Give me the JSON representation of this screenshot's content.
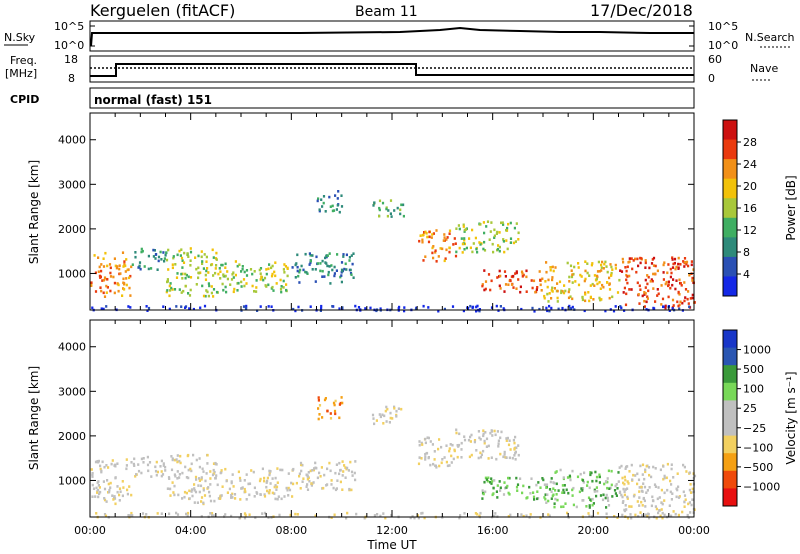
{
  "header": {
    "station": "Kerguelen (fitACF)",
    "beam": "Beam 11",
    "date": "17/Dec/2018"
  },
  "top_panels": {
    "nsky_label": "N.Sky",
    "nsearch_label": "N.Search",
    "nsky_ticks": [
      "10^5",
      "10^0"
    ],
    "nsearch_ticks": [
      "10^5",
      "10^0"
    ],
    "freq_label_1": "Freq.",
    "freq_label_2": "[MHz]",
    "freq_ticks": [
      "18",
      "8"
    ],
    "nave_label": "Nave",
    "nave_ticks": [
      "60",
      "0"
    ],
    "cpid_label": "CPID",
    "cpid_value": "normal (fast) 151"
  },
  "colors": {
    "power": [
      "#1428e6",
      "#2a50b4",
      "#2e8a7a",
      "#3fae62",
      "#a8c83a",
      "#f2c20a",
      "#f29018",
      "#ea3a0e",
      "#cc1010"
    ],
    "velocity": [
      "#e81010",
      "#f04a0a",
      "#f5a013",
      "#f2d060",
      "#c0c0c0",
      "#c0c0c0",
      "#78d858",
      "#3a9a3a",
      "#2a56b2",
      "#1836c8"
    ]
  },
  "chart_data": [
    {
      "type": "heatmap",
      "name": "power",
      "ylabel": "Slant Range [km]",
      "xlabel": "",
      "y_ticks": [
        "4000",
        "3000",
        "2000",
        "1000"
      ],
      "ylim": [
        180,
        4600
      ],
      "xlim": [
        0,
        24
      ],
      "colorbar_label": "Power [dB]",
      "colorbar_ticks": [
        "28",
        "24",
        "20",
        "16",
        "12",
        "8",
        "4"
      ],
      "regions": [
        {
          "t0": 0.0,
          "t1": 1.6,
          "r0": 500,
          "r1": 1500,
          "level": 6
        },
        {
          "t0": 1.6,
          "t1": 3.0,
          "r0": 1100,
          "r1": 1600,
          "level": 2
        },
        {
          "t0": 3.0,
          "t1": 5.0,
          "r0": 500,
          "r1": 1600,
          "level": 4
        },
        {
          "t0": 5.0,
          "t1": 8.0,
          "r0": 600,
          "r1": 1300,
          "level": 4
        },
        {
          "t0": 8.0,
          "t1": 10.5,
          "r0": 800,
          "r1": 1500,
          "level": 2
        },
        {
          "t0": 9.0,
          "t1": 10.0,
          "r0": 2400,
          "r1": 2900,
          "level": 2
        },
        {
          "t0": 11.2,
          "t1": 12.5,
          "r0": 2300,
          "r1": 2700,
          "level": 3
        },
        {
          "t0": 13.0,
          "t1": 14.5,
          "r0": 1300,
          "r1": 2000,
          "level": 6
        },
        {
          "t0": 14.5,
          "t1": 17.0,
          "r0": 1500,
          "r1": 2200,
          "level": 4
        },
        {
          "t0": 15.5,
          "t1": 18.0,
          "r0": 600,
          "r1": 1100,
          "level": 7
        },
        {
          "t0": 18.0,
          "t1": 21.0,
          "r0": 400,
          "r1": 1300,
          "level": 5
        },
        {
          "t0": 21.0,
          "t1": 24.0,
          "r0": 250,
          "r1": 1400,
          "level": 7
        },
        {
          "t0": 0.0,
          "t1": 24.0,
          "r0": 180,
          "r1": 300,
          "level": 0
        }
      ]
    },
    {
      "type": "heatmap",
      "name": "velocity",
      "ylabel": "Slant Range [km]",
      "xlabel": "Time UT",
      "y_ticks": [
        "4000",
        "3000",
        "2000",
        "1000"
      ],
      "x_ticks": [
        "00:00",
        "04:00",
        "08:00",
        "12:00",
        "16:00",
        "20:00",
        "00:00"
      ],
      "ylim": [
        180,
        4600
      ],
      "xlim": [
        0,
        24
      ],
      "colorbar_label": "Velocity [m s⁻¹]",
      "colorbar_ticks": [
        "1000",
        "500",
        "100",
        "25",
        "−25",
        "−100",
        "−500",
        "−1000"
      ],
      "regions": [
        {
          "t0": 0.0,
          "t1": 1.6,
          "r0": 500,
          "r1": 1500,
          "level": 4
        },
        {
          "t0": 1.6,
          "t1": 3.0,
          "r0": 1100,
          "r1": 1600,
          "level": 4
        },
        {
          "t0": 3.0,
          "t1": 5.0,
          "r0": 500,
          "r1": 1600,
          "level": 4
        },
        {
          "t0": 5.0,
          "t1": 8.0,
          "r0": 600,
          "r1": 1300,
          "level": 4
        },
        {
          "t0": 8.0,
          "t1": 10.5,
          "r0": 800,
          "r1": 1500,
          "level": 4
        },
        {
          "t0": 9.0,
          "t1": 10.0,
          "r0": 2400,
          "r1": 2900,
          "level": 2
        },
        {
          "t0": 11.2,
          "t1": 12.5,
          "r0": 2300,
          "r1": 2700,
          "level": 4
        },
        {
          "t0": 13.0,
          "t1": 14.5,
          "r0": 1300,
          "r1": 2000,
          "level": 4
        },
        {
          "t0": 14.5,
          "t1": 17.0,
          "r0": 1500,
          "r1": 2200,
          "level": 4
        },
        {
          "t0": 15.5,
          "t1": 18.0,
          "r0": 600,
          "r1": 1100,
          "level": 6
        },
        {
          "t0": 18.0,
          "t1": 21.0,
          "r0": 400,
          "r1": 1300,
          "level": 6
        },
        {
          "t0": 21.0,
          "t1": 24.0,
          "r0": 250,
          "r1": 1400,
          "level": 4
        },
        {
          "t0": 0.0,
          "t1": 24.0,
          "r0": 180,
          "r1": 300,
          "level": 4
        }
      ]
    }
  ]
}
